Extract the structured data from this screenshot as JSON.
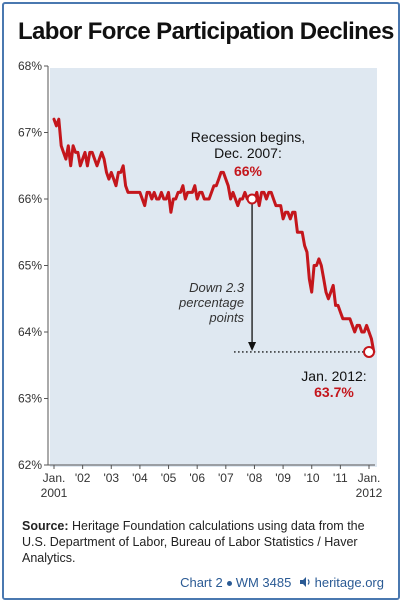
{
  "title": "Labor Force Participation Declines",
  "source_label": "Source:",
  "source_text": "Heritage Foundation calculations using data from the U.S. Department of Labor, Bureau of Labor Statistics / Haver Analytics.",
  "footer": {
    "chart_label": "Chart 2",
    "wm_label": "WM 3485",
    "site": "heritage.org"
  },
  "colors": {
    "line": "#c4161c",
    "plot_bg": "#dfe8f1",
    "accent": "#4a78b0"
  },
  "chart_data": {
    "type": "line",
    "title": "Labor Force Participation Declines",
    "xlabel": "",
    "ylabel": "",
    "ylim": [
      62,
      68
    ],
    "y_ticks": [
      "62%",
      "63%",
      "64%",
      "65%",
      "66%",
      "67%",
      "68%"
    ],
    "x_ticks": [
      {
        "label": "Jan. 2001",
        "t": 0
      },
      {
        "label": "'02",
        "t": 12
      },
      {
        "label": "'03",
        "t": 24
      },
      {
        "label": "'04",
        "t": 36
      },
      {
        "label": "'05",
        "t": 48
      },
      {
        "label": "'06",
        "t": 60
      },
      {
        "label": "'07",
        "t": 72
      },
      {
        "label": "'08",
        "t": 84
      },
      {
        "label": "'09",
        "t": 96
      },
      {
        "label": "'10",
        "t": 108
      },
      {
        "label": "'11",
        "t": 120
      },
      {
        "label": "Jan. 2012",
        "t": 132
      }
    ],
    "grid": false,
    "series": [
      {
        "values": [
          67.2,
          67.1,
          67.2,
          66.8,
          66.7,
          66.6,
          66.8,
          66.5,
          66.8,
          66.7,
          66.7,
          66.5,
          66.6,
          66.7,
          66.5,
          66.7,
          66.7,
          66.6,
          66.5,
          66.6,
          66.7,
          66.6,
          66.4,
          66.3,
          66.4,
          66.3,
          66.2,
          66.4,
          66.4,
          66.5,
          66.2,
          66.1,
          66.1,
          66.1,
          66.1,
          66.1,
          66.1,
          66.0,
          65.9,
          66.1,
          66.1,
          66.0,
          66.1,
          66.0,
          66.0,
          66.1,
          66.0,
          66.0,
          66.1,
          65.8,
          66.0,
          66.0,
          66.1,
          66.1,
          66.2,
          66.0,
          66.1,
          66.1,
          66.1,
          66.2,
          66.0,
          66.1,
          66.1,
          66.0,
          66.0,
          66.0,
          66.1,
          66.2,
          66.2,
          66.3,
          66.4,
          66.4,
          66.3,
          66.2,
          66.0,
          66.1,
          66.0,
          65.9,
          66.0,
          66.0,
          66.1,
          66.0,
          66.0,
          66.0,
          66.0,
          66.1,
          65.9,
          66.1,
          66.1,
          66.0,
          66.1,
          66.1,
          66.0,
          65.9,
          65.9,
          65.9,
          65.7,
          65.8,
          65.8,
          65.7,
          65.8,
          65.8,
          65.5,
          65.5,
          65.5,
          65.3,
          65.2,
          64.8,
          64.6,
          65.0,
          65.0,
          65.1,
          65.0,
          64.8,
          64.6,
          64.5,
          64.6,
          64.7,
          64.4,
          64.4,
          64.3,
          64.2,
          64.2,
          64.2,
          64.2,
          64.1,
          64.0,
          64.1,
          64.1,
          64.0,
          64.0,
          64.1,
          64.0,
          63.9,
          63.7
        ],
        "start": "Jan. 2001",
        "interval": "monthly"
      }
    ],
    "annotations": {
      "recession_title": "Recession begins,",
      "recession_date": "Dec. 2007:",
      "recession_value": "66%",
      "recession_t": 83,
      "recession_y": 66.0,
      "end_date": "Jan. 2012:",
      "end_value": "63.7%",
      "end_t": 132,
      "end_y": 63.7,
      "decline_lines": [
        "Down 2.3",
        "percentage",
        "points"
      ]
    }
  }
}
